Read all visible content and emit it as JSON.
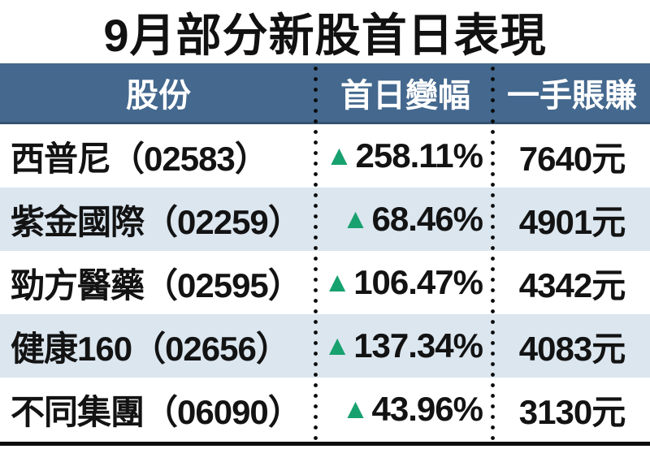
{
  "title": "9月部分新股首日表現",
  "glyphs": {
    "up_triangle": "▲"
  },
  "colors": {
    "header_bg": "#44688E",
    "header_border": "#36536F",
    "row_alt_bg": "#DBE6EF",
    "up_green": "#17A16E",
    "text": "#131313",
    "bottom_rule": "#0d0d0d"
  },
  "table": {
    "headers": [
      "股份",
      "首日變幅",
      "一手賬賺"
    ],
    "rows": [
      {
        "stock": "西普尼（02583）",
        "change": "258.11%",
        "direction": "up",
        "profit": "7640元"
      },
      {
        "stock": "紫金國際（02259）",
        "change": "68.46%",
        "direction": "up",
        "profit": "4901元"
      },
      {
        "stock": "勁方醫藥（02595）",
        "change": "106.47%",
        "direction": "up",
        "profit": "4342元"
      },
      {
        "stock": "健康160（02656）",
        "change": "137.34%",
        "direction": "up",
        "profit": "4083元"
      },
      {
        "stock": "不同集團（06090）",
        "change": "43.96%",
        "direction": "up",
        "profit": "3130元"
      }
    ]
  },
  "chart_data": {
    "type": "table",
    "title": "9月部分新股首日表現",
    "columns": [
      "股份",
      "首日變幅",
      "一手賬賺"
    ],
    "rows": [
      [
        "西普尼（02583）",
        "▲258.11%",
        "7640元"
      ],
      [
        "紫金國際（02259）",
        "▲68.46%",
        "4901元"
      ],
      [
        "勁方醫藥（02595）",
        "▲106.47%",
        "4342元"
      ],
      [
        "健康160（02656）",
        "▲137.34%",
        "4083元"
      ],
      [
        "不同集團（06090）",
        "▲43.96%",
        "3130元"
      ]
    ],
    "stocks": [
      "西普尼",
      "紫金國際",
      "勁方醫藥",
      "健康160",
      "不同集團"
    ],
    "stock_codes": [
      "02583",
      "02259",
      "02595",
      "02656",
      "06090"
    ],
    "first_day_change_pct": [
      258.11,
      68.46,
      106.47,
      137.34,
      43.96
    ],
    "profit_per_lot_hkd": [
      7640,
      4901,
      4342,
      4083,
      3130
    ]
  }
}
